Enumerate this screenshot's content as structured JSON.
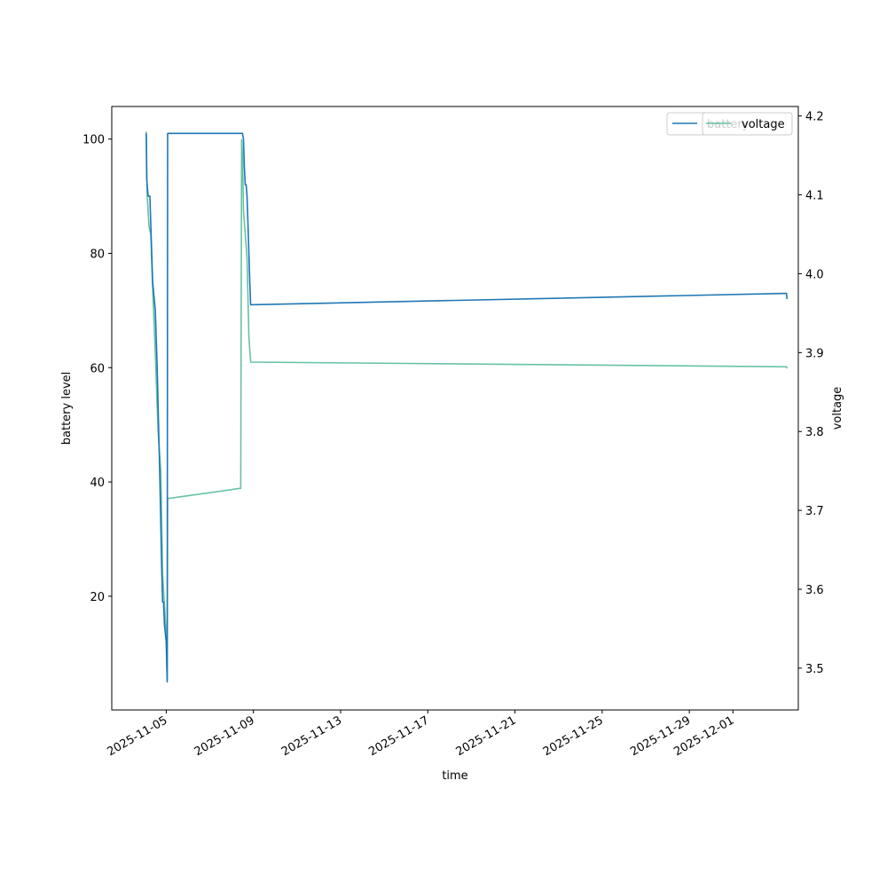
{
  "chart_data": {
    "type": "line",
    "xlabel": "time",
    "ylabel": "battery level",
    "y2label": "voltage",
    "x_ticks": [
      "2025-11-05",
      "2025-11-09",
      "2025-11-13",
      "2025-11-17",
      "2025-11-21",
      "2025-11-25",
      "2025-11-29",
      "2025-12-01"
    ],
    "y_ticks": [
      20,
      40,
      60,
      80,
      100
    ],
    "y2_ticks": [
      "3.5",
      "3.6",
      "3.7",
      "3.8",
      "3.9",
      "4.0",
      "4.1",
      "4.2"
    ],
    "xlim": [
      "2025-11-02T12:00",
      "2025-12-04T00:00"
    ],
    "ylim": [
      0.1,
      105.7
    ],
    "y2lim": [
      3.447,
      4.212
    ],
    "legend_placement": "top-right",
    "grid": false,
    "colors": {
      "battery": "#1f77b4",
      "voltage": "#66c2a5"
    },
    "series": [
      {
        "name": "battery",
        "axis": "left",
        "points": [
          [
            "2025-11-04T02:00",
            101
          ],
          [
            "2025-11-04T02:30",
            93
          ],
          [
            "2025-11-04T04:00",
            90
          ],
          [
            "2025-11-04T06:00",
            90
          ],
          [
            "2025-11-04T07:00",
            85
          ],
          [
            "2025-11-04T09:00",
            75
          ],
          [
            "2025-11-04T12:00",
            70
          ],
          [
            "2025-11-04T14:00",
            60
          ],
          [
            "2025-11-04T17:00",
            40
          ],
          [
            "2025-11-04T19:00",
            25
          ],
          [
            "2025-11-04T20:00",
            19
          ],
          [
            "2025-11-04T21:00",
            19
          ],
          [
            "2025-11-04T22:00",
            15
          ],
          [
            "2025-11-05T00:00",
            12
          ],
          [
            "2025-11-05T01:00",
            5
          ],
          [
            "2025-11-05T01:30",
            101
          ],
          [
            "2025-11-08T12:00",
            101
          ],
          [
            "2025-11-08T13:00",
            100
          ],
          [
            "2025-11-08T14:00",
            95
          ],
          [
            "2025-11-08T15:00",
            92
          ],
          [
            "2025-11-08T16:00",
            92
          ],
          [
            "2025-11-08T17:00",
            90
          ],
          [
            "2025-11-08T18:00",
            85
          ],
          [
            "2025-11-08T20:00",
            75
          ],
          [
            "2025-11-08T21:00",
            71
          ],
          [
            "2025-12-03T11:00",
            73
          ],
          [
            "2025-12-03T11:30",
            72
          ]
        ]
      },
      {
        "name": "voltage",
        "axis": "right",
        "points": [
          [
            "2025-11-04T02:00",
            4.18
          ],
          [
            "2025-11-04T03:00",
            4.1
          ],
          [
            "2025-11-04T05:00",
            4.06
          ],
          [
            "2025-11-04T07:00",
            4.05
          ],
          [
            "2025-11-04T09:00",
            3.98
          ],
          [
            "2025-11-04T12:00",
            3.9
          ],
          [
            "2025-11-04T15:00",
            3.8
          ],
          [
            "2025-11-04T18:00",
            3.75
          ],
          [
            "2025-11-04T20:00",
            3.62
          ],
          [
            "2025-11-04T22:00",
            3.58
          ],
          [
            "2025-11-05T00:00",
            3.54
          ],
          [
            "2025-11-05T01:00",
            3.485
          ],
          [
            "2025-11-05T01:30",
            3.715
          ],
          [
            "2025-11-08T10:00",
            3.728
          ],
          [
            "2025-11-08T11:00",
            4.17
          ],
          [
            "2025-11-08T12:00",
            4.15
          ],
          [
            "2025-11-08T13:00",
            4.08
          ],
          [
            "2025-11-08T15:00",
            4.05
          ],
          [
            "2025-11-08T17:00",
            4.02
          ],
          [
            "2025-11-08T19:00",
            3.92
          ],
          [
            "2025-11-08T21:00",
            3.888
          ],
          [
            "2025-12-03T11:00",
            3.882
          ],
          [
            "2025-12-03T11:30",
            3.88
          ]
        ]
      }
    ]
  }
}
